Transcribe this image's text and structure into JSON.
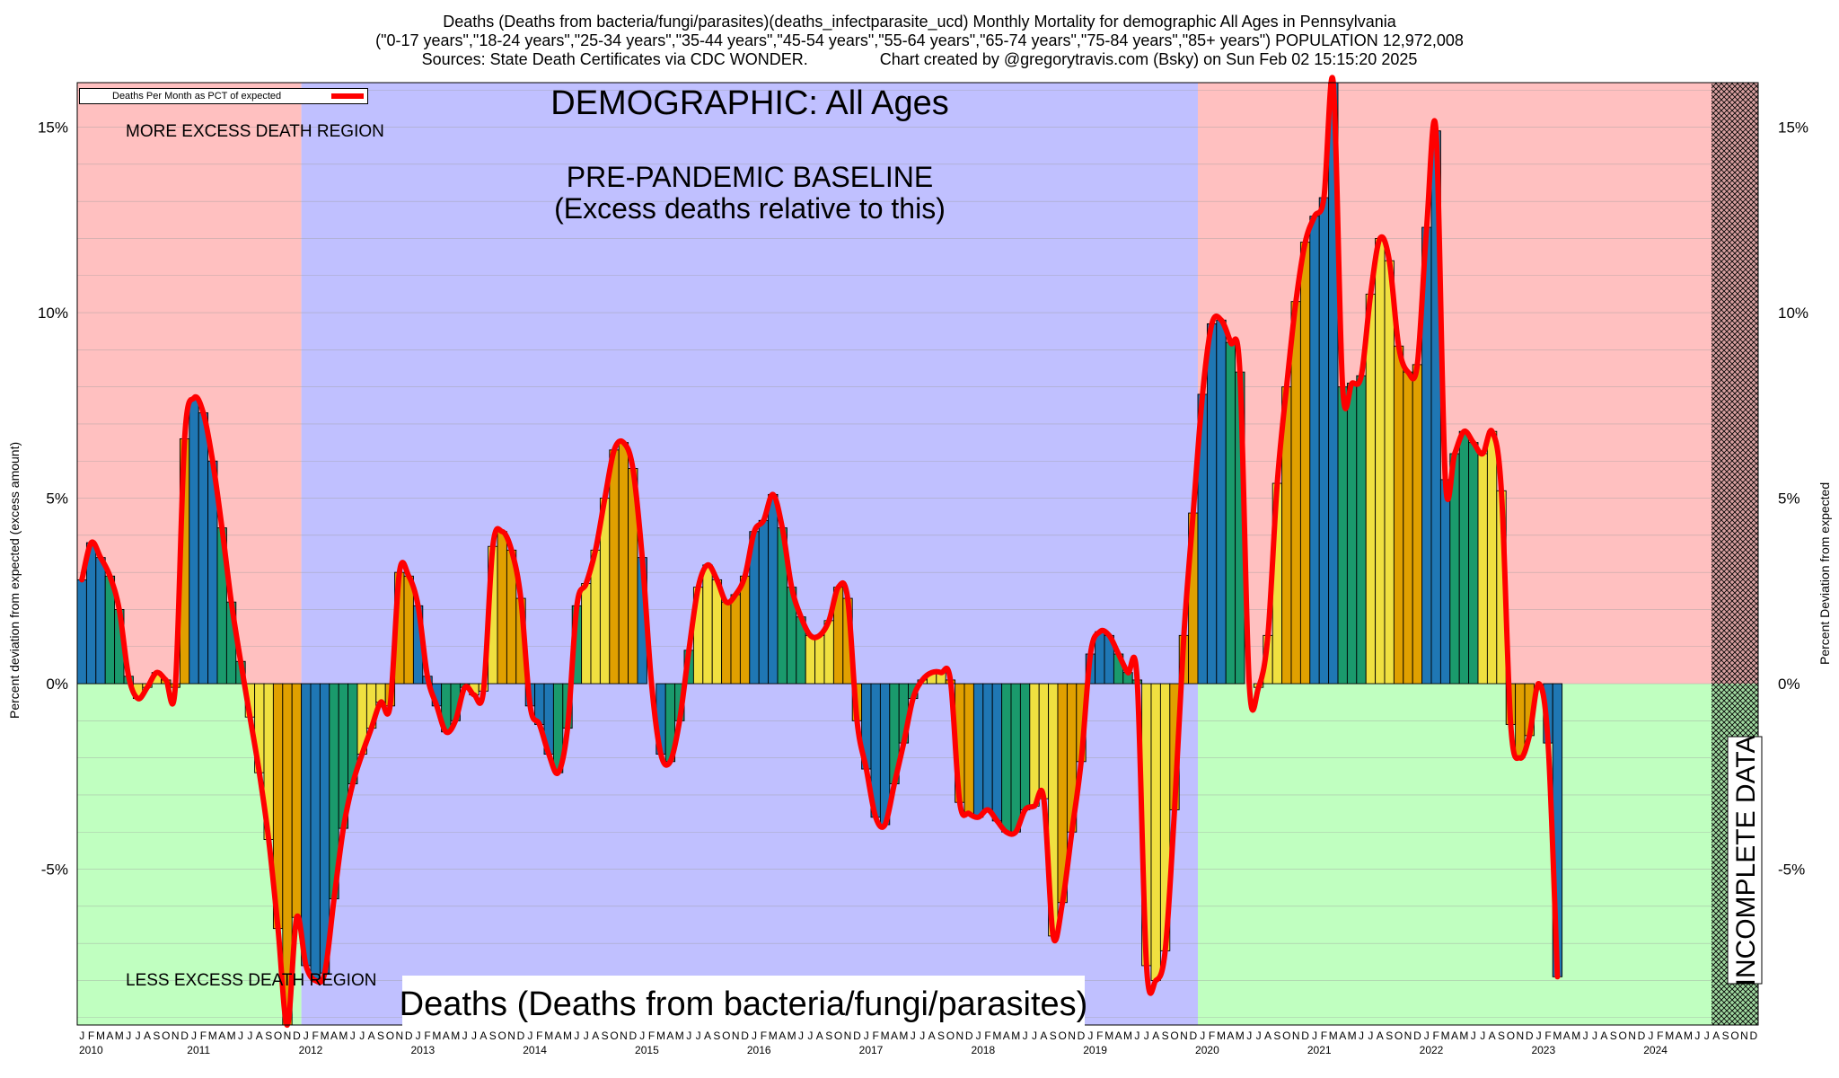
{
  "title": {
    "line1": "Deaths (Deaths from bacteria/fungi/parasites)(deaths_infectparasite_ucd) Monthly Mortality for demographic All Ages in Pennsylvania",
    "line2": "(\"0-17 years\",\"18-24 years\",\"25-34 years\",\"35-44 years\",\"45-54 years\",\"55-64 years\",\"65-74 years\",\"75-84 years\",\"85+ years\") POPULATION 12,972,008",
    "sources": "Sources: State Death Certificates via CDC WONDER.",
    "credit": "Chart created by @gregorytravis.com (Bsky) on Sun Feb 02 15:15:20 2025"
  },
  "legend": {
    "label": "Deaths Per Month as PCT of expected",
    "color": "#ff0000"
  },
  "annotations": {
    "demographic": "DEMOGRAPHIC: All Ages",
    "baseline_line1": "PRE-PANDEMIC BASELINE",
    "baseline_line2": "(Excess deaths relative to this)",
    "more_region": "MORE EXCESS DEATH REGION",
    "less_region": "LESS EXCESS DEATH REGION",
    "incomplete": "INCOMPLETE DATA",
    "bottom_title": "Deaths (Deaths from bacteria/fungi/parasites)"
  },
  "axes": {
    "ylabel_left": "Percent deviation from expected (excess amount)",
    "ylabel_right": "Percent Deviation from expected",
    "yticks": [
      "15%",
      "10%",
      "5%",
      "0%",
      "-5%"
    ],
    "ytick_values": [
      15,
      10,
      5,
      0,
      -5
    ],
    "month_letters": "JFMAMJJASOND",
    "years": [
      "2010",
      "2011",
      "2012",
      "2013",
      "2014",
      "2015",
      "2016",
      "2017",
      "2018",
      "2019",
      "2020",
      "2021",
      "2022",
      "2023",
      "2024"
    ]
  },
  "colors": {
    "excess_region": "#ffc0c0",
    "less_region": "#c0ffc0",
    "baseline_region": "#c0c0ff",
    "line": "#ff0000",
    "bar_q1": "#1f77b4",
    "bar_q2": "#1a9a6c",
    "bar_q3": "#f0e040",
    "bar_q4": "#e0a000"
  },
  "chart_data": {
    "type": "bar",
    "x_start": "2010-01",
    "x_end": "2024-12",
    "ylim": [
      -9.2,
      16.2
    ],
    "baseline_period": [
      "2012-01",
      "2019-12"
    ],
    "incomplete_from": "2024-08",
    "series": [
      {
        "name": "Deaths Per Month as PCT of expected",
        "values": [
          2.8,
          3.8,
          3.4,
          2.9,
          2.0,
          0.2,
          -0.4,
          -0.1,
          0.3,
          0.1,
          -0.1,
          6.6,
          7.7,
          7.3,
          6.0,
          4.2,
          2.2,
          0.6,
          -0.9,
          -2.4,
          -4.2,
          -6.6,
          -9.2,
          -6.3,
          -7.6,
          -8.0,
          -7.8,
          -5.8,
          -3.9,
          -2.7,
          -1.9,
          -1.2,
          -0.5,
          -0.6,
          3.0,
          2.9,
          2.1,
          0.2,
          -0.6,
          -1.3,
          -1.0,
          -0.1,
          -0.3,
          -0.2,
          3.7,
          4.1,
          3.6,
          2.3,
          -0.6,
          -1.1,
          -1.9,
          -2.4,
          -1.2,
          2.1,
          2.7,
          3.6,
          5.0,
          6.3,
          6.5,
          5.8,
          3.4,
          0.0,
          -1.9,
          -2.1,
          -1.0,
          0.9,
          2.6,
          3.2,
          2.8,
          2.2,
          2.4,
          2.9,
          4.1,
          4.4,
          5.1,
          4.2,
          2.6,
          1.8,
          1.3,
          1.3,
          1.7,
          2.6,
          2.3,
          -1.0,
          -2.3,
          -3.6,
          -3.8,
          -2.7,
          -1.6,
          -0.4,
          0.1,
          0.3,
          0.3,
          0.1,
          -3.2,
          -3.5,
          -3.6,
          -3.4,
          -3.7,
          -4.0,
          -4.0,
          -3.4,
          -3.3,
          -3.1,
          -6.8,
          -5.9,
          -4.0,
          -2.1,
          0.8,
          1.4,
          1.3,
          0.8,
          0.3,
          0.1,
          -7.6,
          -8.0,
          -7.2,
          -3.4,
          1.3,
          4.6,
          7.8,
          9.7,
          9.8,
          9.2,
          8.4,
          0.0,
          -0.1,
          1.3,
          5.4,
          8.0,
          10.3,
          11.9,
          12.6,
          13.1,
          16.2,
          8.0,
          8.1,
          8.3,
          10.5,
          12.0,
          11.4,
          9.1,
          8.4,
          8.6,
          12.3,
          14.9,
          5.5,
          6.2,
          6.8,
          6.5,
          6.2,
          6.8,
          5.2,
          -1.1,
          -2.0,
          -1.4,
          0.0,
          -1.6,
          -7.9
        ]
      }
    ]
  }
}
